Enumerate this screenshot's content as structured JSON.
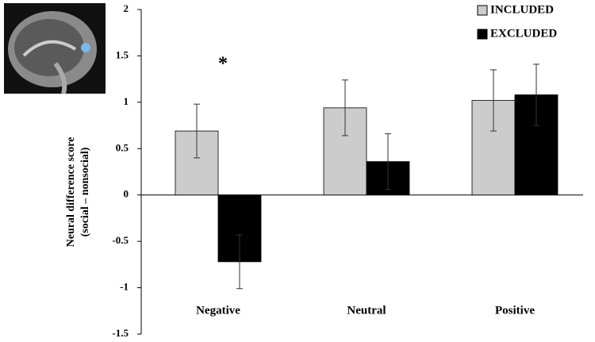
{
  "chart_data": {
    "type": "bar",
    "ylabel": [
      "Neural difference score",
      "(social – nonsocial)"
    ],
    "categories": [
      "Negative",
      "Neutral",
      "Positive"
    ],
    "series": [
      {
        "name": "INCLUDED",
        "color": "#cccccc",
        "values": [
          0.69,
          0.94,
          1.02
        ],
        "errors": [
          0.29,
          0.3,
          0.33
        ]
      },
      {
        "name": "EXCLUDED",
        "color": "#000000",
        "values": [
          -0.72,
          0.36,
          1.08
        ],
        "errors": [
          0.29,
          0.3,
          0.33
        ]
      }
    ],
    "annotations": [
      {
        "text": "*"
      }
    ],
    "ylim": [
      -1.5,
      2
    ],
    "yticks": [
      -1.5,
      -1,
      -0.5,
      0,
      0.5,
      1,
      1.5,
      2
    ],
    "legend": "upper right",
    "grid": false
  }
}
